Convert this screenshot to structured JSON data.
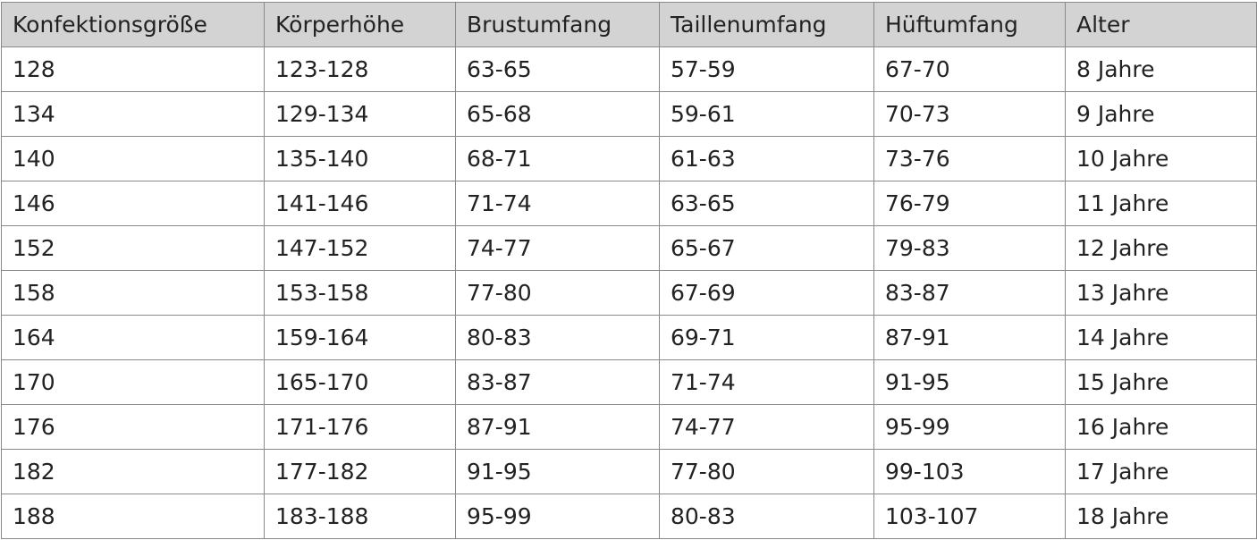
{
  "table": {
    "header": [
      "Konfektionsgröße",
      "Körperhöhe",
      "Brustumfang",
      "Taillenumfang",
      "Hüftumfang",
      "Alter"
    ],
    "rows": [
      [
        "128",
        "123-128",
        "63-65",
        "57-59",
        "67-70",
        "8 Jahre"
      ],
      [
        "134",
        "129-134",
        "65-68",
        "59-61",
        "70-73",
        "9 Jahre"
      ],
      [
        "140",
        "135-140",
        "68-71",
        "61-63",
        "73-76",
        "10 Jahre"
      ],
      [
        "146",
        "141-146",
        "71-74",
        "63-65",
        "76-79",
        "11 Jahre"
      ],
      [
        "152",
        "147-152",
        "74-77",
        "65-67",
        "79-83",
        "12 Jahre"
      ],
      [
        "158",
        "153-158",
        "77-80",
        "67-69",
        "83-87",
        "13 Jahre"
      ],
      [
        "164",
        "159-164",
        "80-83",
        "69-71",
        "87-91",
        "14 Jahre"
      ],
      [
        "170",
        "165-170",
        "83-87",
        "71-74",
        "91-95",
        "15 Jahre"
      ],
      [
        "176",
        "171-176",
        "87-91",
        "74-77",
        "95-99",
        "16 Jahre"
      ],
      [
        "182",
        "177-182",
        "91-95",
        "77-80",
        "99-103",
        "17 Jahre"
      ],
      [
        "188",
        "183-188",
        "95-99",
        "80-83",
        "103-107",
        "18 Jahre"
      ]
    ]
  }
}
